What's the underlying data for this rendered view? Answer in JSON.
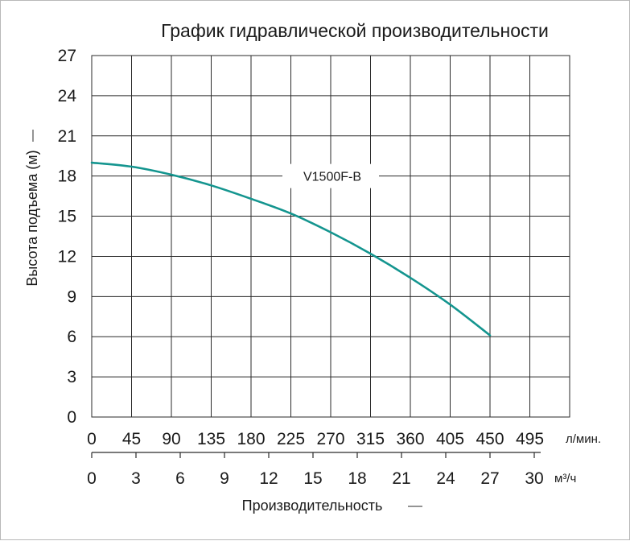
{
  "chart_data": {
    "type": "line",
    "title": "График гидравлической производительности",
    "ylabel": "Высота подъема (м)",
    "xlabel": "Производительность",
    "x_unit_primary": "л/мин.",
    "x_unit_secondary": "м³/ч",
    "x_primary_ticks": [
      "0",
      "45",
      "90",
      "135",
      "180",
      "225",
      "270",
      "315",
      "360",
      "405",
      "450",
      "495"
    ],
    "x_secondary_ticks": [
      "0",
      "3",
      "6",
      "9",
      "12",
      "15",
      "18",
      "21",
      "24",
      "27",
      "30"
    ],
    "y_ticks": [
      "0",
      "3",
      "6",
      "9",
      "12",
      "15",
      "18",
      "21",
      "24",
      "27"
    ],
    "xlim": [
      0,
      540
    ],
    "ylim": [
      0,
      27
    ],
    "grid": true,
    "colors": {
      "series": "#14958f",
      "grid": "#2a2a2a"
    },
    "series": [
      {
        "name": "V1500F-B",
        "x": [
          0,
          45,
          90,
          135,
          180,
          225,
          270,
          315,
          360,
          405,
          450
        ],
        "values": [
          19.0,
          18.7,
          18.1,
          17.3,
          16.3,
          15.2,
          13.8,
          12.2,
          10.4,
          8.4,
          6.1
        ]
      }
    ]
  }
}
